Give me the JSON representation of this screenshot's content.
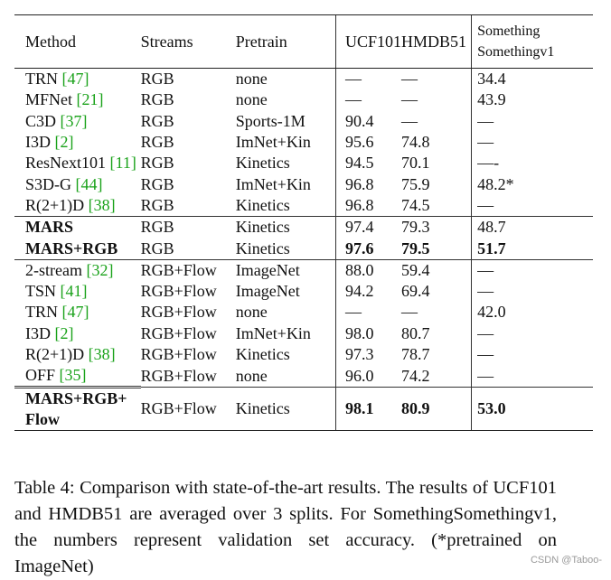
{
  "table": {
    "headers": {
      "method": "Method",
      "streams": "Streams",
      "pretrain": "Pretrain",
      "ucf": "UCF101",
      "hmdb": "HMDB51",
      "ss_line1": "Something",
      "ss_line2": "Somethingv1"
    },
    "groups": [
      {
        "rows": [
          {
            "method": "TRN ",
            "ref": "[47]",
            "streams": "RGB",
            "pretrain": "none",
            "ucf": "—",
            "hmdb": "—",
            "ss": "34.4",
            "bold": false
          },
          {
            "method": "MFNet ",
            "ref": "[21]",
            "streams": "RGB",
            "pretrain": "none",
            "ucf": "—",
            "hmdb": "—",
            "ss": "43.9",
            "bold": false
          },
          {
            "method": "C3D ",
            "ref": "[37]",
            "streams": "RGB",
            "pretrain": "Sports-1M",
            "ucf": "90.4",
            "hmdb": "—",
            "ss": "—",
            "bold": false
          },
          {
            "method": "I3D ",
            "ref": "[2]",
            "streams": "RGB",
            "pretrain": "ImNet+Kin",
            "ucf": "95.6",
            "hmdb": "74.8",
            "ss": "—",
            "bold": false
          },
          {
            "method": "ResNext101 ",
            "ref": "[11]",
            "streams": "RGB",
            "pretrain": "Kinetics",
            "ucf": "94.5",
            "hmdb": "70.1",
            "ss": "—-",
            "bold": false
          },
          {
            "method": "S3D-G ",
            "ref": "[44]",
            "streams": "RGB",
            "pretrain": "ImNet+Kin",
            "ucf": "96.8",
            "hmdb": "75.9",
            "ss": "48.2*",
            "bold": false
          },
          {
            "method": "R(2+1)D ",
            "ref": "[38]",
            "streams": "RGB",
            "pretrain": "Kinetics",
            "ucf": "96.8",
            "hmdb": "74.5",
            "ss": "—",
            "bold": false
          }
        ]
      },
      {
        "rows": [
          {
            "method": "MARS",
            "ref": "",
            "streams": "RGB",
            "pretrain": "Kinetics",
            "ucf": "97.4",
            "hmdb": "79.3",
            "ss": "48.7",
            "bold": true,
            "bold_values": false
          },
          {
            "method": "MARS+RGB",
            "ref": "",
            "streams": "RGB",
            "pretrain": "Kinetics",
            "ucf": "97.6",
            "hmdb": "79.5",
            "ss": "51.7",
            "bold": true,
            "bold_values": true
          }
        ]
      },
      {
        "rows": [
          {
            "method": "2-stream ",
            "ref": "[32]",
            "streams": "RGB+Flow",
            "pretrain": "ImageNet",
            "ucf": "88.0",
            "hmdb": "59.4",
            "ss": "—",
            "bold": false
          },
          {
            "method": "TSN ",
            "ref": "[41]",
            "streams": "RGB+Flow",
            "pretrain": "ImageNet",
            "ucf": "94.2",
            "hmdb": "69.4",
            "ss": "—",
            "bold": false
          },
          {
            "method": "TRN ",
            "ref": "[47]",
            "streams": "RGB+Flow",
            "pretrain": "none",
            "ucf": "—",
            "hmdb": "—",
            "ss": "42.0",
            "bold": false
          },
          {
            "method": "I3D ",
            "ref": "[2]",
            "streams": "RGB+Flow",
            "pretrain": "ImNet+Kin",
            "ucf": "98.0",
            "hmdb": "80.7",
            "ss": "—",
            "bold": false
          },
          {
            "method": "R(2+1)D ",
            "ref": "[38]",
            "streams": "RGB+Flow",
            "pretrain": "Kinetics",
            "ucf": "97.3",
            "hmdb": "78.7",
            "ss": "—",
            "bold": false
          },
          {
            "method": "OFF ",
            "ref": "[35]",
            "streams": "RGB+Flow",
            "pretrain": "none",
            "ucf": "96.0",
            "hmdb": "74.2",
            "ss": "—",
            "bold": false
          }
        ]
      }
    ],
    "final_row": {
      "method_line1": "MARS+RGB+",
      "method_line2": "Flow",
      "streams": "RGB+Flow",
      "pretrain": "Kinetics",
      "ucf": "98.1",
      "hmdb": "80.9",
      "ss": "53.0"
    }
  },
  "caption": "Table 4: Comparison with state-of-the-art results. The results of UCF101 and HMDB51 are averaged over 3 splits. For SomethingSomethingv1, the numbers represent validation set accuracy. (*pretrained on ImageNet)",
  "watermark": "CSDN @Taboo-"
}
